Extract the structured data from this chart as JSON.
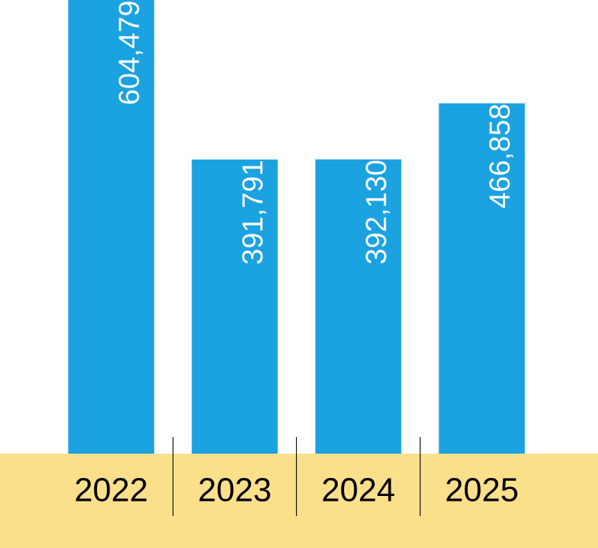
{
  "chart_data": {
    "type": "bar",
    "categories": [
      "2022",
      "2023",
      "2024",
      "2025"
    ],
    "values": [
      604479,
      391791,
      392130,
      466858
    ],
    "value_labels": [
      "604,479",
      "391,791",
      "392,130",
      "466,858"
    ],
    "color": "#1ba3e1"
  }
}
